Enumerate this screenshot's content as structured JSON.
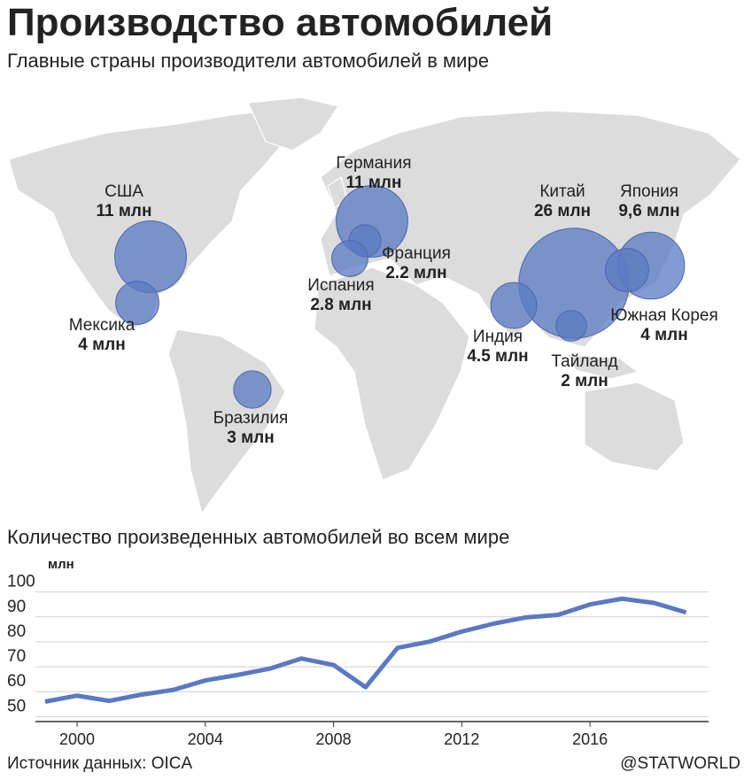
{
  "title": "Производство автомобилей",
  "subtitle": "Главные страны производители автомобилей в мире",
  "chart_data": [
    {
      "type": "bubble-map",
      "categories": [
        "США",
        "Мексика",
        "Бразилия",
        "Германия",
        "Франция",
        "Испания",
        "Китай",
        "Япония",
        "Южная Корея",
        "Индия",
        "Тайланд"
      ],
      "values": [
        11,
        4,
        3,
        11,
        2.2,
        2.8,
        26,
        9.6,
        4,
        4.5,
        2
      ],
      "value_labels": [
        "11 млн",
        "4 млн",
        "3 млн",
        "11 млн",
        "2.2 млн",
        "2.8 млн",
        "26 млн",
        "9,6 млн",
        "4 млн",
        "4.5 млн",
        "2 млн"
      ],
      "color": "#5b79c2"
    },
    {
      "type": "line",
      "title": "Количество произведенных автомобилей во всем мире",
      "y_label": "млн",
      "x": [
        1999,
        2000,
        2001,
        2002,
        2003,
        2004,
        2005,
        2006,
        2007,
        2008,
        2009,
        2010,
        2011,
        2012,
        2013,
        2014,
        2015,
        2016,
        2017,
        2018,
        2019
      ],
      "values": [
        56,
        58.4,
        56.3,
        58.8,
        60.7,
        64.5,
        66.7,
        69.2,
        73.3,
        70.7,
        61.8,
        77.6,
        80.1,
        84.1,
        87.3,
        89.8,
        90.8,
        95,
        97.3,
        95.6,
        91.8
      ],
      "color": "#5b79c2",
      "xlim": [
        1998.7,
        2019.7
      ],
      "ylim": [
        48,
        102
      ],
      "xticks": [
        2000,
        2004,
        2008,
        2012,
        2016
      ],
      "yticks": [
        50,
        60,
        70,
        80,
        90,
        100
      ],
      "grid": true
    }
  ],
  "footer": {
    "source": "Источник данных: OICA",
    "credit": "@STATWORLD"
  }
}
